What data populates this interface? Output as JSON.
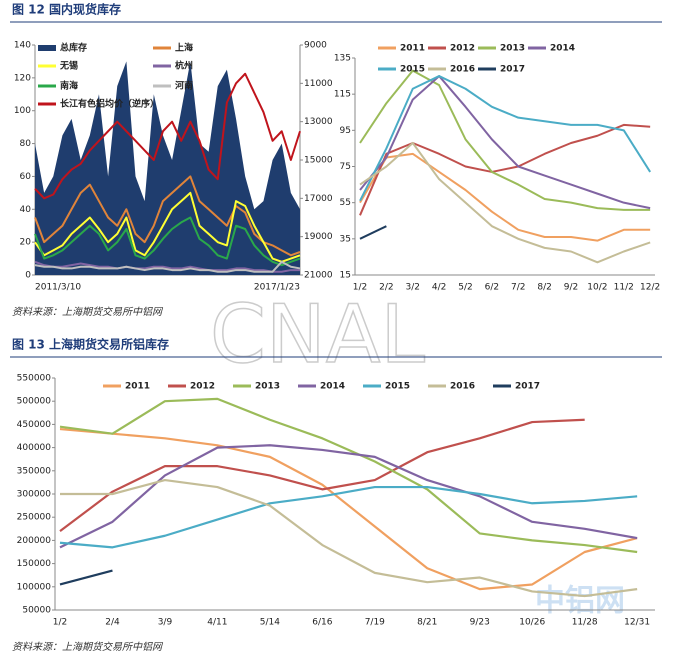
{
  "captions": [
    "图 12 国内现货库存",
    "图 13 上海期货交易所铝库存"
  ],
  "sources": [
    "资料来源：上海期货交易所中铝网",
    "资料来源：上海期货交易所中铝网"
  ],
  "watermarks": [
    "CNAL",
    "中铝网"
  ],
  "chart_data": [
    {
      "type": "line",
      "categories": [
        "2011/3/10",
        null,
        null,
        null,
        null,
        null,
        null,
        null,
        null,
        null,
        null,
        null,
        null,
        null,
        null,
        null,
        null,
        null,
        null,
        null,
        null,
        null,
        null,
        null,
        null,
        null,
        null,
        null,
        null,
        "2017/1/23"
      ],
      "ylim": [
        0,
        140
      ],
      "yticks": [
        0,
        20,
        40,
        60,
        80,
        100,
        120,
        140
      ],
      "y2lim": [
        21000,
        9000
      ],
      "y2ticks": [
        21000,
        19000,
        17000,
        15000,
        13000,
        11000,
        9000
      ],
      "series": [
        {
          "name": "总库存",
          "kind": "area",
          "color": "#1f3d6e",
          "values": [
            80,
            50,
            60,
            85,
            95,
            70,
            85,
            110,
            60,
            115,
            130,
            60,
            45,
            110,
            85,
            70,
            100,
            130,
            80,
            75,
            115,
            125,
            95,
            60,
            40,
            45,
            70,
            80,
            50,
            40
          ]
        },
        {
          "name": "上海",
          "color": "#e0843a",
          "values": [
            35,
            20,
            25,
            30,
            40,
            50,
            55,
            45,
            35,
            30,
            40,
            25,
            20,
            30,
            45,
            50,
            55,
            60,
            45,
            40,
            35,
            30,
            42,
            38,
            25,
            20,
            18,
            15,
            12,
            14
          ]
        },
        {
          "name": "无锡",
          "color": "#ffff33",
          "values": [
            20,
            12,
            15,
            18,
            25,
            30,
            35,
            28,
            20,
            25,
            35,
            15,
            12,
            20,
            30,
            40,
            45,
            50,
            30,
            25,
            20,
            18,
            45,
            42,
            30,
            20,
            10,
            8,
            10,
            12
          ]
        },
        {
          "name": "杭州",
          "color": "#8064a2",
          "values": [
            8,
            6,
            5,
            5,
            6,
            7,
            6,
            5,
            5,
            4,
            5,
            4,
            4,
            5,
            5,
            4,
            4,
            5,
            4,
            3,
            3,
            3,
            4,
            4,
            3,
            3,
            2,
            2,
            3,
            3
          ]
        },
        {
          "name": "南海",
          "color": "#2aa84a",
          "values": [
            25,
            10,
            12,
            15,
            20,
            25,
            30,
            25,
            15,
            20,
            28,
            12,
            10,
            15,
            22,
            28,
            32,
            35,
            22,
            18,
            12,
            10,
            30,
            28,
            18,
            12,
            8,
            6,
            8,
            10
          ]
        },
        {
          "name": "河南",
          "color": "#bfbfbf",
          "values": [
            6,
            5,
            5,
            4,
            4,
            5,
            5,
            4,
            4,
            4,
            5,
            4,
            3,
            4,
            4,
            3,
            3,
            4,
            3,
            3,
            2,
            2,
            3,
            3,
            2,
            2,
            2,
            8,
            5,
            4
          ]
        },
        {
          "name": "长江有色铝均价（逆序）",
          "axis": "y2",
          "color": "#c0141c",
          "values": [
            16500,
            17000,
            16800,
            16000,
            15500,
            15200,
            14500,
            14000,
            13500,
            13000,
            13500,
            14000,
            14500,
            15000,
            13500,
            13000,
            14000,
            13000,
            14000,
            15500,
            16000,
            12000,
            11000,
            10500,
            11500,
            12500,
            14000,
            13500,
            15000,
            13500
          ]
        }
      ]
    },
    {
      "type": "line",
      "categories": [
        "1/2",
        "2/2",
        "3/2",
        "4/2",
        "5/2",
        "6/2",
        "7/2",
        "8/2",
        "9/2",
        "10/2",
        "11/2",
        "12/2"
      ],
      "ylim": [
        15,
        135
      ],
      "yticks": [
        15,
        35,
        55,
        75,
        95,
        115,
        135
      ],
      "series": [
        {
          "name": "2011",
          "color": "#f0a060",
          "values": [
            55,
            80,
            82,
            72,
            62,
            50,
            40,
            36,
            36,
            34,
            40,
            40
          ]
        },
        {
          "name": "2012",
          "color": "#c0504d",
          "values": [
            48,
            82,
            88,
            82,
            75,
            72,
            75,
            82,
            88,
            92,
            98,
            97
          ]
        },
        {
          "name": "2013",
          "color": "#9bbb59",
          "values": [
            88,
            110,
            128,
            120,
            90,
            72,
            65,
            57,
            55,
            52,
            51,
            51
          ]
        },
        {
          "name": "2014",
          "color": "#8064a2",
          "values": [
            62,
            80,
            112,
            125,
            108,
            90,
            75,
            70,
            65,
            60,
            55,
            52
          ]
        },
        {
          "name": "2015",
          "color": "#4bacc6",
          "values": [
            56,
            85,
            118,
            125,
            118,
            108,
            102,
            100,
            98,
            98,
            95,
            72
          ]
        },
        {
          "name": "2016",
          "color": "#c4bd97",
          "values": [
            65,
            75,
            88,
            68,
            55,
            42,
            35,
            30,
            28,
            22,
            28,
            33
          ]
        },
        {
          "name": "2017",
          "color": "#1f3d5e",
          "values": [
            35,
            42,
            null,
            null,
            null,
            null,
            null,
            null,
            null,
            null,
            null,
            null
          ]
        }
      ]
    },
    {
      "type": "line",
      "categories": [
        "1/2",
        "2/4",
        "3/9",
        "4/11",
        "5/14",
        "6/16",
        "7/19",
        "8/21",
        "9/23",
        "10/26",
        "11/28",
        "12/31"
      ],
      "ylim": [
        50000,
        550000
      ],
      "yticks": [
        50000,
        100000,
        150000,
        200000,
        250000,
        300000,
        350000,
        400000,
        450000,
        500000,
        550000
      ],
      "series": [
        {
          "name": "2011",
          "color": "#f0a060",
          "values": [
            440000,
            430000,
            420000,
            405000,
            380000,
            320000,
            230000,
            140000,
            95000,
            105000,
            175000,
            205000
          ]
        },
        {
          "name": "2012",
          "color": "#c0504d",
          "values": [
            220000,
            305000,
            360000,
            360000,
            340000,
            310000,
            330000,
            390000,
            420000,
            455000,
            460000,
            null
          ]
        },
        {
          "name": "2013",
          "color": "#9bbb59",
          "values": [
            445000,
            430000,
            500000,
            505000,
            460000,
            420000,
            370000,
            310000,
            215000,
            200000,
            190000,
            175000
          ]
        },
        {
          "name": "2014",
          "color": "#8064a2",
          "values": [
            185000,
            240000,
            340000,
            400000,
            405000,
            395000,
            380000,
            330000,
            295000,
            240000,
            225000,
            205000
          ]
        },
        {
          "name": "2015",
          "color": "#4bacc6",
          "values": [
            195000,
            185000,
            210000,
            245000,
            280000,
            295000,
            315000,
            315000,
            300000,
            280000,
            285000,
            295000
          ]
        },
        {
          "name": "2016",
          "color": "#c4bd97",
          "values": [
            300000,
            300000,
            330000,
            315000,
            275000,
            190000,
            130000,
            110000,
            120000,
            90000,
            80000,
            95000
          ]
        },
        {
          "name": "2017",
          "color": "#1f3d5e",
          "values": [
            105000,
            135000,
            null,
            null,
            null,
            null,
            null,
            null,
            null,
            null,
            null,
            null
          ]
        }
      ]
    }
  ]
}
